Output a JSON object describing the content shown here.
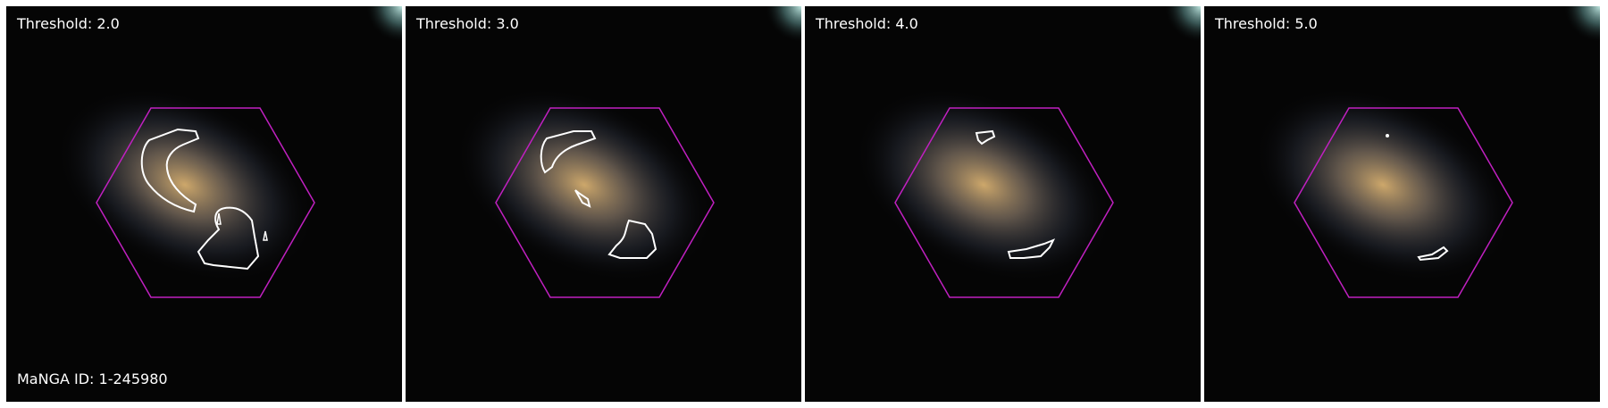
{
  "figure": {
    "manga_id_label": "MaNGA ID: 1-245980",
    "panels": [
      {
        "threshold_label": "Threshold: 2.0"
      },
      {
        "threshold_label": "Threshold: 3.0"
      },
      {
        "threshold_label": "Threshold: 4.0"
      },
      {
        "threshold_label": "Threshold: 5.0"
      }
    ]
  },
  "colors": {
    "hexagon": "#c020c0",
    "contour": "#ffffff",
    "galaxy_core": "#e8c070",
    "background": "#050505"
  }
}
